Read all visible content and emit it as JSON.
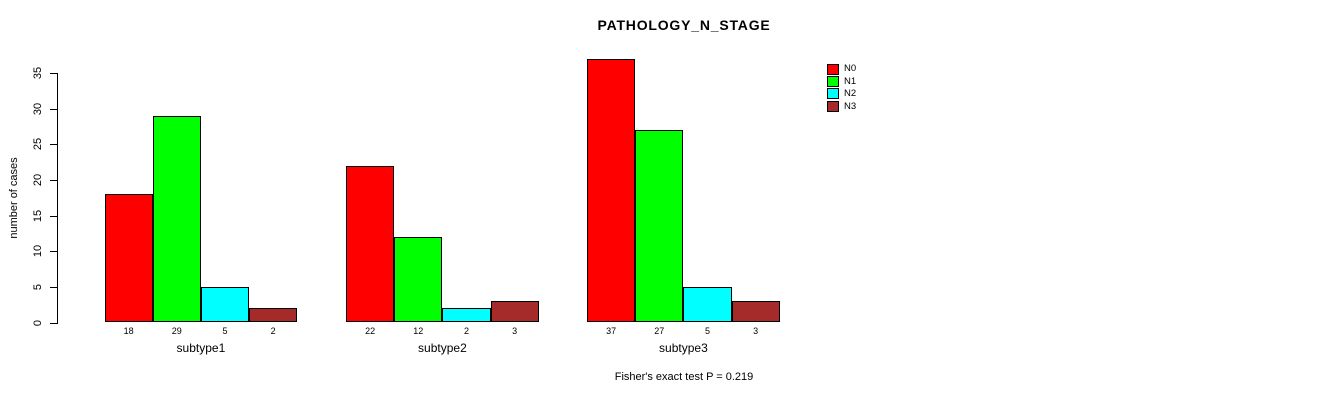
{
  "chart_data": {
    "type": "bar",
    "title": "PATHOLOGY_N_STAGE",
    "ylabel": "number of cases",
    "xlabel": "",
    "categories": [
      "subtype1",
      "subtype2",
      "subtype3"
    ],
    "series": [
      {
        "name": "N0",
        "color": "#FF0000",
        "values": [
          18,
          22,
          37
        ]
      },
      {
        "name": "N1",
        "color": "#00FF00",
        "values": [
          29,
          12,
          27
        ]
      },
      {
        "name": "N2",
        "color": "#00FFFF",
        "values": [
          5,
          2,
          5
        ]
      },
      {
        "name": "N3",
        "color": "#A52A2A",
        "values": [
          2,
          3,
          3
        ]
      }
    ],
    "bar_value_labels": [
      [
        "18",
        "29",
        "5",
        "2"
      ],
      [
        "22",
        "12",
        "2",
        "3"
      ],
      [
        "37",
        "27",
        "5",
        "3"
      ]
    ],
    "yticks": [
      0,
      5,
      10,
      15,
      20,
      25,
      30,
      35
    ],
    "ylim": [
      0,
      37
    ],
    "grid": false,
    "legend": {
      "position": "top-right",
      "entries": [
        "N0",
        "N1",
        "N2",
        "N3"
      ]
    },
    "annotation": "Fisher's exact test P = 0.219",
    "colors": {
      "axis": "#000000",
      "text": "#000000",
      "background": "#FFFFFF"
    }
  }
}
